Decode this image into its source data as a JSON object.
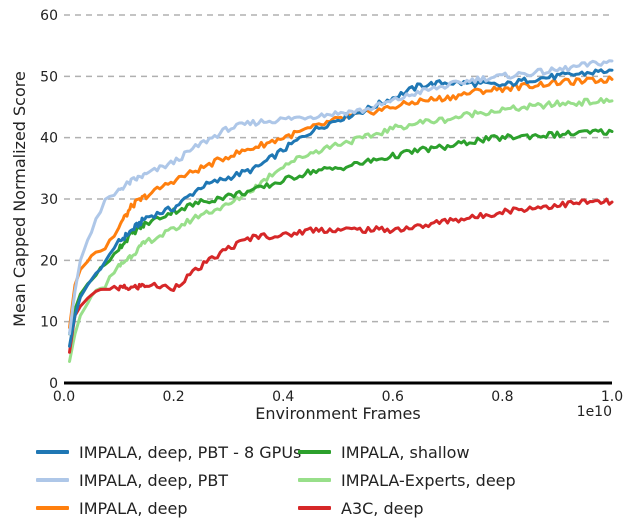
{
  "chart_data": {
    "type": "line",
    "title": "",
    "xlabel": "Environment Frames",
    "ylabel": "Mean Capped Normalized Score",
    "x_offset_label": "1e10",
    "xlim": [
      0.0,
      1.0
    ],
    "ylim": [
      0,
      60
    ],
    "xticks": [
      "0.0",
      "0.2",
      "0.4",
      "0.6",
      "0.8",
      "1.0"
    ],
    "yticks": [
      "0",
      "10",
      "20",
      "30",
      "40",
      "50",
      "60"
    ],
    "grid": "horizontal dashed",
    "legend_placement": "bottom",
    "x": [
      0.01,
      0.02,
      0.03,
      0.05,
      0.075,
      0.1,
      0.125,
      0.15,
      0.2,
      0.25,
      0.3,
      0.35,
      0.4,
      0.45,
      0.5,
      0.55,
      0.6,
      0.65,
      0.7,
      0.75,
      0.8,
      0.85,
      0.9,
      0.95,
      1.0
    ],
    "series": [
      {
        "name": "IMPALA, deep, PBT - 8 GPUs",
        "color": "#1f77b4",
        "values": [
          6,
          11,
          14,
          17,
          19.5,
          23,
          25,
          27,
          28.5,
          32,
          33.5,
          35,
          38,
          41,
          43,
          44.5,
          46.5,
          48.5,
          49,
          48.8,
          48.5,
          49.5,
          50,
          50.5,
          51
        ]
      },
      {
        "name": "IMPALA, deep, PBT",
        "color": "#aec7e8",
        "values": [
          8,
          15,
          20,
          25,
          30,
          31.5,
          33,
          34,
          36,
          39,
          41.5,
          42.5,
          43,
          43.5,
          44,
          44.5,
          46,
          47.5,
          48.5,
          49.5,
          50,
          50.5,
          51,
          51.8,
          52.5
        ]
      },
      {
        "name": "IMPALA, deep",
        "color": "#ff7f0e",
        "values": [
          9,
          16,
          18.5,
          20.5,
          22,
          25.5,
          29,
          30.5,
          33,
          35,
          37,
          38.5,
          40,
          41.5,
          43,
          44,
          45,
          46,
          46.5,
          47.5,
          48,
          48.5,
          49,
          49.2,
          49.5
        ]
      },
      {
        "name": "IMPALA, shallow",
        "color": "#2ca02c",
        "values": [
          8,
          12,
          14.5,
          17,
          19,
          22,
          24.5,
          26,
          28,
          29.5,
          30.5,
          31.5,
          33,
          34.5,
          35,
          36,
          37,
          38,
          38.5,
          39.5,
          40,
          40.3,
          40.5,
          40.8,
          41
        ]
      },
      {
        "name": "IMPALA-Experts, deep",
        "color": "#98df8a",
        "values": [
          3.5,
          8,
          11,
          14,
          16,
          19,
          21,
          23,
          25,
          27.5,
          29,
          32,
          35.5,
          37.5,
          39,
          40,
          41.5,
          42.5,
          43,
          44,
          44.5,
          45,
          45.5,
          45.8,
          46
        ]
      },
      {
        "name": "A3C, deep",
        "color": "#d62728",
        "values": [
          5,
          11,
          12.5,
          14.5,
          15.5,
          15.5,
          15.5,
          16,
          15.5,
          19,
          22,
          24,
          24,
          25,
          25,
          25,
          25,
          25.5,
          26.5,
          27,
          28,
          28.5,
          29,
          29.5,
          29.5
        ]
      }
    ]
  }
}
